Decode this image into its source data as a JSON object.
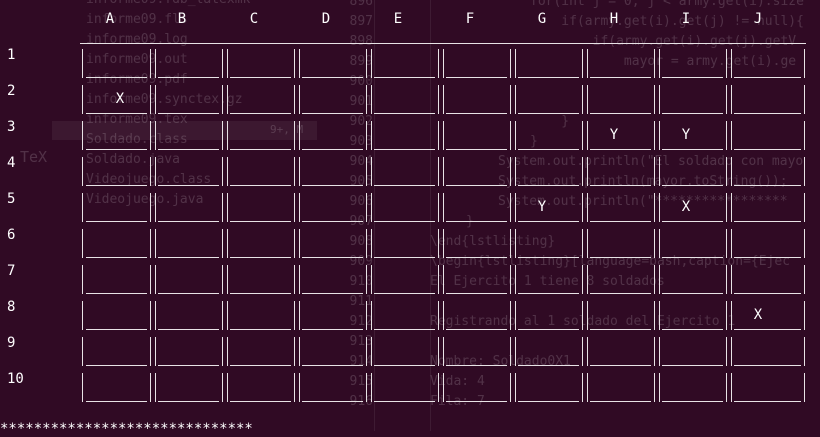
{
  "background_color": "#300a24",
  "board": {
    "columns": [
      "A",
      "B",
      "C",
      "D",
      "E",
      "F",
      "G",
      "H",
      "I",
      "J"
    ],
    "rows": [
      "1",
      "2",
      "3",
      "4",
      "5",
      "6",
      "7",
      "8",
      "9",
      "10"
    ],
    "marks": [
      {
        "row": 2,
        "col": "A",
        "symbol": "X"
      },
      {
        "row": 3,
        "col": "H",
        "symbol": "Y"
      },
      {
        "row": 3,
        "col": "I",
        "symbol": "Y"
      },
      {
        "row": 5,
        "col": "G",
        "symbol": "Y"
      },
      {
        "row": 5,
        "col": "I",
        "symbol": "X"
      },
      {
        "row": 8,
        "col": "J",
        "symbol": "X"
      }
    ],
    "bottom_separator": "******************************"
  },
  "background_editor": {
    "sidebar_files": [
      "informe09.fdb_latexmk",
      "informe09.fls",
      "informe09.log",
      "informe09.out",
      "informe09.pdf",
      "informe09.synctex.gz",
      "informe09.tex",
      "Soldado.class",
      "Soldado.java",
      "Videojuego.class",
      "Videojuego.java"
    ],
    "tex_badge": "TeX",
    "modified_badge": "9+, M",
    "line_numbers": [
      "896",
      "897",
      "898",
      "899",
      "900",
      "901",
      "902",
      "903",
      "904",
      "905",
      "906",
      "907",
      "908",
      "909",
      "910",
      "911",
      "912",
      "913",
      "914",
      "915",
      "916"
    ],
    "code_lines": [
      "for(int j = 0; j < army.get(i).size",
      "    if(army.get(i).get(j) != null){",
      "        if(army.get(i).get(j).getV",
      "            mayor = army.get(i).ge",
      "",
      "",
      "    }",
      "}",
      "System.out.println(\"El soldado con mayo",
      "System.out.println(mayor.toString());",
      "System.out.println(\"*****************",
      "}",
      "\\end{lstlisting}",
      "\\begin{lstlisting}[language=bash,caption={Ejec",
      "El Ejercito 1 tiene 8 soldados",
      "",
      "Registrando al 1 soldado del Ejercito 1",
      "",
      "Nombre: Soldado0X1",
      "Vida: 4",
      "Fila: 7"
    ]
  }
}
